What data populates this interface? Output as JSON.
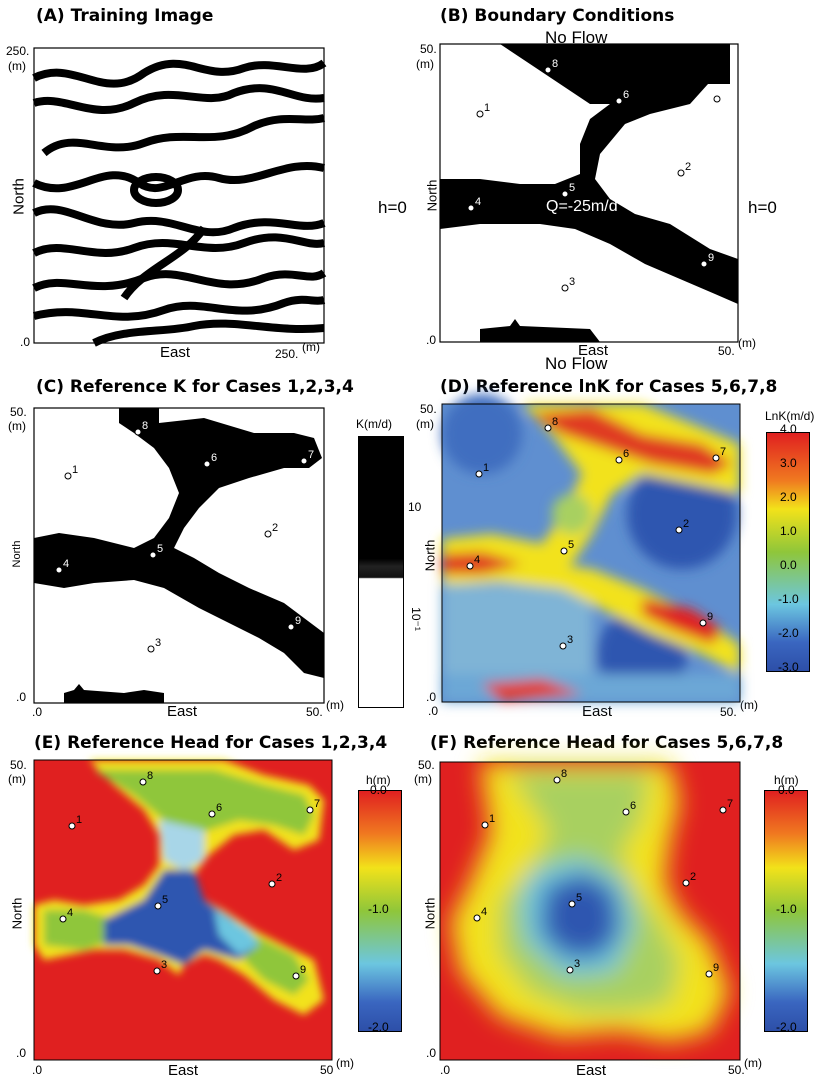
{
  "panels": {
    "a": {
      "title": "(A) Training Image",
      "tick_top": "250.",
      "tick_m": "(m)",
      "tick_zero": ".0",
      "tick_right": "250.",
      "tick_right_m": "(m)",
      "xlabel": "East",
      "ylabel": "North"
    },
    "b": {
      "title": "(B) Boundary Conditions",
      "top": "No Flow",
      "bottom": "No Flow",
      "left": "h=0",
      "right": "h=0",
      "pumping": "Q=-25m/d",
      "tick_top": "50.",
      "tick_m": "(m)",
      "tick_zero": ".0",
      "tick_right": "50.",
      "tick_right_m": "(m)",
      "xlabel": "East",
      "ylabel": "North"
    },
    "c": {
      "title": "(C) Reference K for Cases 1,2,3,4",
      "tick_top": "50.",
      "tick_m": "(m)",
      "tick_zero": ".0",
      "tick_zero_x": ".0",
      "tick_right": "50.",
      "tick_right_m": "(m)",
      "xlabel": "East",
      "ylabel": "North",
      "colorbar": {
        "title": "K(m/d)",
        "ticks": [
          "10",
          "10⁻¹"
        ]
      }
    },
    "d": {
      "title": "(D) Reference lnK for Cases 5,6,7,8",
      "tick_top": "50.",
      "tick_m": "(m)",
      "tick_zero": ".0",
      "tick_zero_x": ".0",
      "tick_right": "50.",
      "tick_right_m": "(m)",
      "xlabel": "East",
      "ylabel": "North",
      "colorbar": {
        "title": "LnK(m/d)",
        "ticks": [
          "4.0",
          "3.0",
          "2.0",
          "1.0",
          "0.0",
          "-1.0",
          "-2.0",
          "-3.0"
        ]
      }
    },
    "e": {
      "title": "(E) Reference Head for Cases 1,2,3,4",
      "tick_top": "50.",
      "tick_m": "(m)",
      "tick_zero": ".0",
      "tick_zero_x": ".0",
      "tick_right": "50",
      "tick_right_m": "(m)",
      "xlabel": "East",
      "ylabel": "North",
      "colorbar": {
        "title": "h(m)",
        "ticks": [
          "0.0",
          "-1.0",
          "-2.0"
        ]
      }
    },
    "f": {
      "title": "(F) Reference Head for Cases 5,6,7,8",
      "tick_top": "50.",
      "tick_m": "(m)",
      "tick_zero": ".0",
      "tick_zero_x": ".0",
      "tick_right": "50.",
      "tick_right_m": "(m)",
      "xlabel": "East",
      "ylabel": "North",
      "colorbar": {
        "title": "h(m)",
        "ticks": [
          "0.0",
          "-1.0",
          "-2.0"
        ]
      }
    }
  },
  "wells": [
    "1",
    "2",
    "3",
    "4",
    "5",
    "6",
    "7",
    "8",
    "9"
  ],
  "colors": {
    "red": "#e02020",
    "yellow": "#f2e21a",
    "green": "#74b83a",
    "cyan": "#6cc6e0",
    "blue": "#2d56b0",
    "black": "#000000"
  }
}
